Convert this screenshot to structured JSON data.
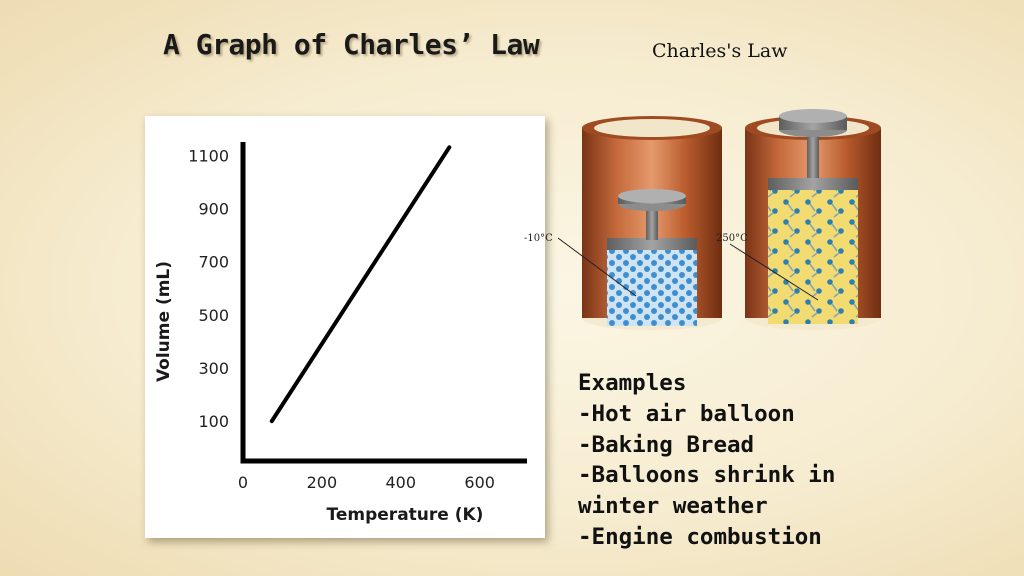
{
  "slide": {
    "title": "A Graph of Charles’ Law",
    "caption": "Charles's Law"
  },
  "illustration": {
    "cold_label": "-10°C",
    "hot_label": "250°C"
  },
  "examples": {
    "lines": [
      "Examples",
      "-Hot air balloon",
      "-Baking Bread",
      "-Balloons shrink in",
      "winter weather",
      "-Engine combustion"
    ]
  },
  "chart_data": {
    "type": "line",
    "xlabel": "Temperature (K)",
    "ylabel": "Volume (mL)",
    "x_ticks": [
      0,
      200,
      400,
      600
    ],
    "y_ticks": [
      100,
      300,
      500,
      700,
      900,
      1100
    ],
    "xlim": [
      0,
      720
    ],
    "ylim": [
      -50,
      1150
    ],
    "series": [
      {
        "x": [
          73,
          523
        ],
        "y": [
          100,
          1130
        ]
      }
    ]
  }
}
